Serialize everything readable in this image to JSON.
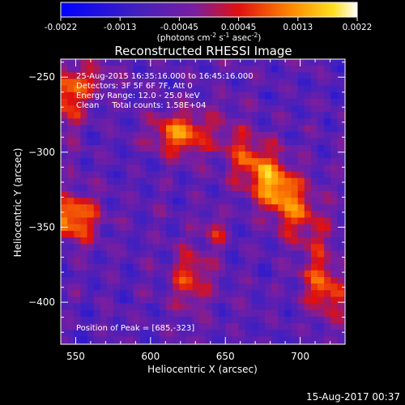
{
  "chart_data": {
    "type": "heatmap",
    "title": "Reconstructed RHESSI Image",
    "xlabel": "Heliocentric X (arcsec)",
    "ylabel": "Heliocentric Y (arcsec)",
    "xlim": [
      540,
      730
    ],
    "ylim": [
      -428,
      -238
    ],
    "x_ticks": [
      550,
      600,
      650,
      700
    ],
    "y_ticks": [
      -250,
      -300,
      -350,
      -400
    ],
    "colorbar": {
      "range": [
        -0.0022,
        0.0022
      ],
      "ticks": [
        "-0.0022",
        "-0.0013",
        "-0.00045",
        "0.00045",
        "0.0013",
        "0.0022"
      ],
      "label_parts": [
        "(photons cm",
        "-2",
        " s",
        "-1",
        " asec",
        "-2",
        ")"
      ],
      "colormap": "blue-purple-red-orange-yellow-white"
    },
    "annotations": [
      "25-Aug-2015 16:35:16.000 to 16:45:16.000",
      "Detectors: 3F 5F 6F 7F, Att 0",
      "Energy Range: 12.0 - 25.0 keV",
      "Clean     Total counts: 1.58E+04"
    ],
    "peak_label": "Position of Peak = [685,-323]",
    "sources": [
      {
        "x": 683,
        "y": -323,
        "sx": 11,
        "sy": 29,
        "angle": 40,
        "amp": 0.0022
      },
      {
        "x": 620,
        "y": -288,
        "sx": 13,
        "sy": 10,
        "angle": 0,
        "amp": 0.0019
      },
      {
        "x": 549,
        "y": -344,
        "sx": 11,
        "sy": 11,
        "angle": 0,
        "amp": 0.002
      },
      {
        "x": 545,
        "y": -262,
        "sx": 9,
        "sy": 14,
        "angle": 0,
        "amp": 0.0017
      },
      {
        "x": 716,
        "y": -390,
        "sx": 9,
        "sy": 15,
        "angle": 20,
        "amp": 0.0016
      },
      {
        "x": 627,
        "y": -385,
        "sx": 9,
        "sy": 14,
        "angle": 0,
        "amp": 0.0013
      },
      {
        "x": 643,
        "y": -354,
        "sx": 5,
        "sy": 8,
        "angle": 0,
        "amp": 0.0011
      },
      {
        "x": 564,
        "y": -252,
        "sx": 8,
        "sy": 6,
        "angle": 0,
        "amp": 0.0009
      }
    ]
  },
  "footer": {
    "timestamp": "15-Aug-2017 00:37"
  }
}
